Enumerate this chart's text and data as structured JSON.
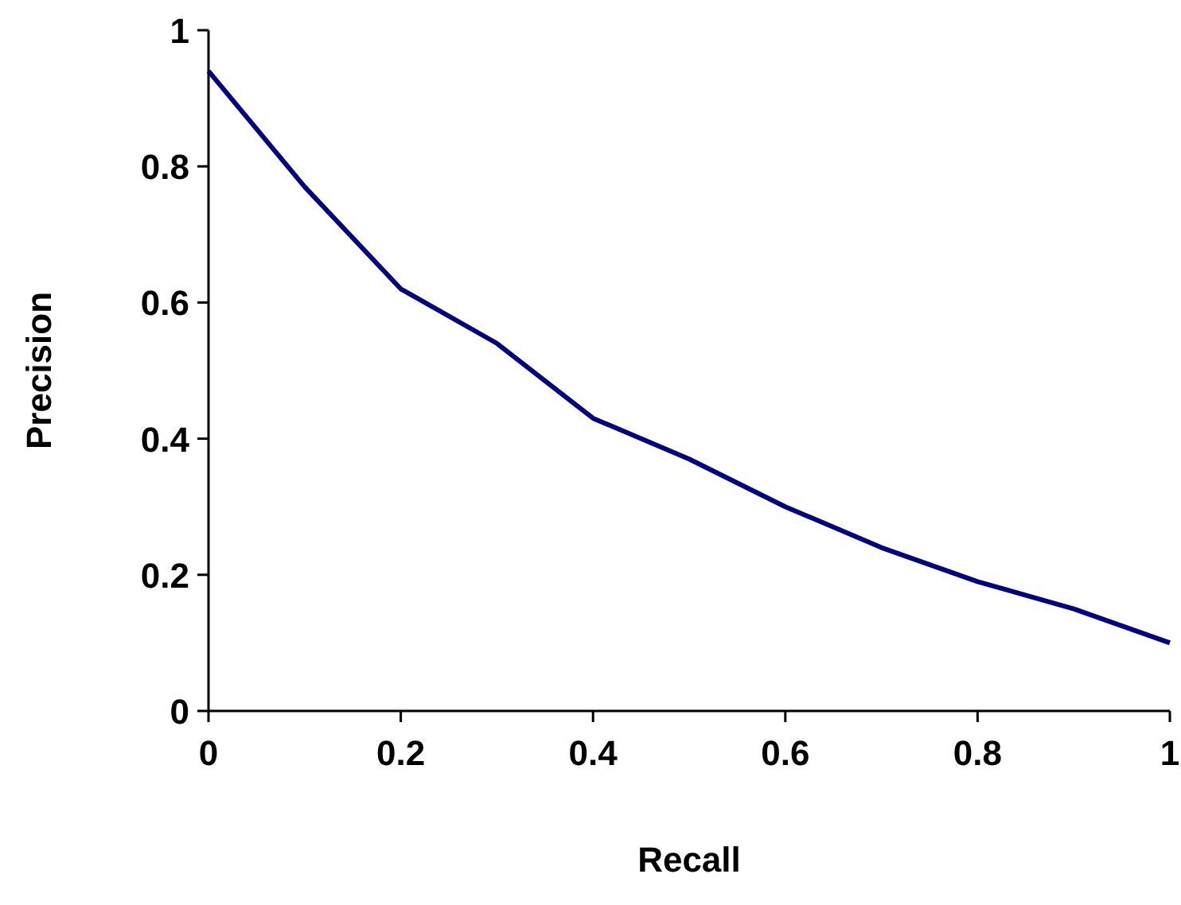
{
  "chart_data": {
    "type": "line",
    "xlabel": "Recall",
    "ylabel": "Precision",
    "x": [
      0,
      0.1,
      0.2,
      0.3,
      0.4,
      0.5,
      0.6,
      0.7,
      0.8,
      0.9,
      1
    ],
    "series": [
      {
        "color": "#000080",
        "values": [
          0.94,
          0.77,
          0.62,
          0.54,
          0.43,
          0.37,
          0.3,
          0.24,
          0.19,
          0.15,
          0.1
        ]
      }
    ],
    "xlim": [
      0,
      1
    ],
    "xticks": [
      0,
      0.2,
      0.4,
      0.6,
      0.8,
      1
    ],
    "ylim": [
      0,
      1
    ],
    "yticks": [
      0,
      0.2,
      0.4,
      0.6,
      0.8,
      1
    ],
    "grid": false,
    "marker": "none",
    "line_style": "solid"
  }
}
